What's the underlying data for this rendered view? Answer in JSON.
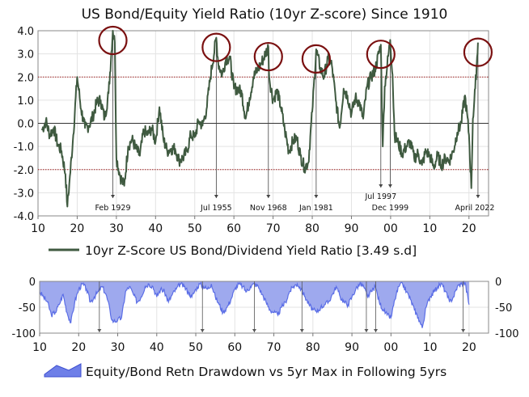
{
  "chart_data": [
    {
      "type": "line",
      "title": "US Bond/Equity Yield Ratio (10yr Z-score) Since 1910",
      "xlabel": "",
      "ylabel": "",
      "xlim": [
        1910,
        2025
      ],
      "ylim": [
        -4.0,
        4.0
      ],
      "x_tick_values": [
        1910,
        1920,
        1930,
        1940,
        1950,
        1960,
        1970,
        1980,
        1990,
        2000,
        2010,
        2020
      ],
      "x_tick_labels": [
        "10",
        "20",
        "30",
        "40",
        "50",
        "60",
        "70",
        "80",
        "90",
        "00",
        "10",
        "20"
      ],
      "y_tick_values": [
        4.0,
        3.0,
        2.0,
        1.0,
        0.0,
        -1.0,
        -2.0,
        -3.0,
        -4.0
      ],
      "y_tick_labels": [
        "4.0",
        "3.0",
        "2.0",
        "1.0",
        "0.0",
        "-1.0",
        "-2.0",
        "-3.0",
        "-4.0"
      ],
      "reference_lines": [
        2.0,
        -2.0
      ],
      "zero_line": 0.0,
      "legend": {
        "position": "bottom",
        "label": "10yr Z-Score US Bond/Dividend Yield Ratio [3.49 s.d]",
        "color": "#3f5a40"
      },
      "annotations": [
        {
          "label": "Feb 1929",
          "x": 1929.1,
          "peak": 4.0,
          "circled": true
        },
        {
          "label": "Jul 1955",
          "x": 1955.5,
          "peak": 3.7,
          "circled": true
        },
        {
          "label": "Nov 1968",
          "x": 1968.8,
          "peak": 3.3,
          "circled": true
        },
        {
          "label": "Jan 1981",
          "x": 1981.0,
          "peak": 3.2,
          "circled": true
        },
        {
          "label": "Jul 1997",
          "x": 1997.5,
          "peak": 3.4,
          "circled": true
        },
        {
          "label": "Dec 1999",
          "x": 1999.9,
          "peak": 3.6,
          "circled": false
        },
        {
          "label": "April 2022",
          "x": 2022.3,
          "peak": 3.49,
          "circled": true
        }
      ],
      "series": [
        {
          "name": "10yr Z-Score US Bond/Dividend Yield Ratio",
          "color": "#3f5a40",
          "x": [
            1911,
            1912,
            1913,
            1914,
            1915,
            1916,
            1917,
            1917.5,
            1918,
            1919,
            1920,
            1921,
            1922,
            1923,
            1924,
            1925,
            1926,
            1927,
            1928,
            1929.1,
            1929.6,
            1930,
            1931,
            1932,
            1933,
            1934,
            1935,
            1936,
            1937,
            1938,
            1939,
            1940,
            1941,
            1942,
            1943,
            1944,
            1945,
            1946,
            1947,
            1948,
            1949,
            1950,
            1951,
            1952,
            1953,
            1954,
            1955.5,
            1956,
            1957,
            1958,
            1959,
            1960,
            1961,
            1962,
            1963,
            1964,
            1965,
            1966,
            1967,
            1968.8,
            1969,
            1970,
            1971,
            1972,
            1973,
            1974,
            1975,
            1976,
            1977,
            1978,
            1979,
            1980,
            1981,
            1982,
            1983,
            1984,
            1985,
            1986,
            1987,
            1988,
            1989,
            1990,
            1991,
            1992,
            1993,
            1994,
            1995,
            1996,
            1997.5,
            1998,
            1998.5,
            1999.9,
            2000.5,
            2001,
            2002,
            2003,
            2004,
            2005,
            2006,
            2007,
            2008,
            2009,
            2010,
            2011,
            2012,
            2013,
            2014,
            2015,
            2016,
            2017,
            2018,
            2019,
            2020,
            2020.6,
            2021,
            2021.6,
            2022.3
          ],
          "y": [
            -0.3,
            0.1,
            -0.5,
            -0.2,
            -0.9,
            -1.2,
            -2.2,
            -3.6,
            -2.6,
            -0.5,
            2.0,
            0.6,
            -0.2,
            -0.1,
            0.3,
            0.9,
            1.0,
            0.2,
            1.3,
            4.0,
            3.5,
            -1.5,
            -2.3,
            -2.7,
            -1.0,
            -0.7,
            -1.1,
            -1.4,
            -0.3,
            -0.5,
            -0.2,
            -0.8,
            0.7,
            -0.7,
            -1.2,
            -1.1,
            -1.1,
            -1.6,
            -1.5,
            -1.2,
            -0.5,
            -0.6,
            0.1,
            -0.1,
            0.6,
            2.0,
            3.7,
            2.6,
            2.1,
            2.8,
            2.8,
            1.5,
            1.5,
            1.3,
            0.2,
            1.1,
            2.0,
            2.3,
            2.6,
            3.3,
            2.0,
            1.0,
            1.4,
            0.7,
            -0.3,
            -1.2,
            -0.8,
            -0.6,
            -1.4,
            -1.9,
            -1.7,
            0.5,
            3.2,
            2.4,
            2.0,
            2.8,
            2.5,
            1.0,
            -0.2,
            1.5,
            1.2,
            0.4,
            1.1,
            0.9,
            0.2,
            1.6,
            2.0,
            2.3,
            3.4,
            -1.0,
            1.6,
            3.6,
            2.1,
            -0.5,
            -0.9,
            -1.3,
            -1.0,
            -0.8,
            -1.5,
            -1.3,
            -1.8,
            -1.2,
            -1.4,
            -1.9,
            -1.4,
            -1.8,
            -1.5,
            -1.6,
            -1.2,
            -0.4,
            0.0,
            1.2,
            -0.5,
            -2.8,
            0.2,
            1.5,
            3.49
          ]
        }
      ]
    },
    {
      "type": "area",
      "title": "",
      "xlabel": "",
      "ylabel": "",
      "xlim": [
        1910,
        2025
      ],
      "ylim": [
        -100,
        0
      ],
      "x_tick_values": [
        1910,
        1920,
        1930,
        1940,
        1950,
        1960,
        1970,
        1980,
        1990,
        2000,
        2010,
        2020
      ],
      "x_tick_labels": [
        "10",
        "20",
        "30",
        "40",
        "50",
        "60",
        "70",
        "80",
        "90",
        "00",
        "10",
        "20"
      ],
      "y_tick_values": [
        0,
        -50,
        -100
      ],
      "y_tick_labels": [
        "0",
        "-50",
        "-100"
      ],
      "marker_lines_x": [
        1929.1,
        1955.5,
        1968.8,
        1981.0,
        1997.5,
        1999.9,
        2022.3
      ],
      "legend": {
        "position": "bottom",
        "label": "Equity/Bond Retn Drawdown vs 5yr Max in Following 5yrs",
        "color": "#5b6ee6"
      },
      "series": [
        {
          "name": "Equity/Bond Retn Drawdown vs 5yr Max in Following 5yrs",
          "color": "#5b6ee6",
          "fill": "#9ea9ee",
          "x": [
            1910,
            1911,
            1912,
            1913,
            1914,
            1915,
            1916,
            1917,
            1918,
            1919,
            1920,
            1921,
            1922,
            1923,
            1924,
            1925,
            1926,
            1927,
            1928,
            1928.5,
            1929,
            1930,
            1931,
            1932,
            1933,
            1934,
            1935,
            1936,
            1937,
            1938,
            1939,
            1940,
            1941,
            1942,
            1943,
            1944,
            1945,
            1946,
            1947,
            1948,
            1949,
            1950,
            1951,
            1952,
            1953,
            1954,
            1955,
            1956,
            1957,
            1958,
            1959,
            1960,
            1961,
            1962,
            1963,
            1964,
            1965,
            1966,
            1967,
            1968,
            1969,
            1970,
            1971,
            1972,
            1973,
            1974,
            1975,
            1976,
            1977,
            1978,
            1979,
            1980,
            1981,
            1982,
            1983,
            1984,
            1985,
            1986,
            1987,
            1988,
            1989,
            1990,
            1991,
            1992,
            1993,
            1994,
            1995,
            1996,
            1997,
            1998,
            1999,
            2000,
            2001,
            2002,
            2003,
            2004,
            2005,
            2006,
            2007,
            2008,
            2009,
            2010,
            2011,
            2012,
            2013,
            2014,
            2015,
            2016,
            2017,
            2018,
            2019,
            2020
          ],
          "y": [
            -20,
            -30,
            -40,
            -65,
            -60,
            -45,
            -25,
            -60,
            -80,
            -40,
            -15,
            -5,
            -15,
            -40,
            -30,
            -20,
            -10,
            -25,
            -55,
            -75,
            -77,
            -75,
            -70,
            -20,
            -10,
            -25,
            -40,
            -30,
            -10,
            -5,
            -10,
            -30,
            -15,
            -20,
            -40,
            -25,
            -15,
            -5,
            -10,
            -20,
            -30,
            -15,
            -5,
            -10,
            -15,
            -5,
            -30,
            -45,
            -60,
            -50,
            -35,
            -15,
            -5,
            -10,
            -20,
            -10,
            -5,
            -10,
            -25,
            -40,
            -55,
            -60,
            -65,
            -50,
            -40,
            -20,
            -10,
            -5,
            -15,
            -30,
            -45,
            -55,
            -60,
            -50,
            -45,
            -40,
            -25,
            -10,
            -30,
            -40,
            -45,
            -30,
            -15,
            -5,
            -10,
            -30,
            -20,
            -10,
            -40,
            -55,
            -65,
            -70,
            -35,
            -10,
            -5,
            -20,
            -35,
            -55,
            -70,
            -90,
            -50,
            -30,
            -20,
            -10,
            -5,
            -20,
            -40,
            -30,
            -10,
            -5,
            -3,
            -45
          ]
        }
      ]
    }
  ]
}
